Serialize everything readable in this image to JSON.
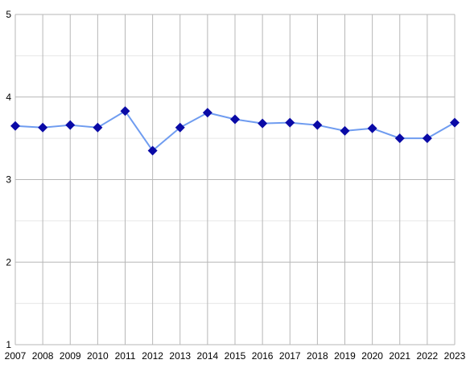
{
  "chart_data": {
    "type": "line",
    "title": "",
    "xlabel": "",
    "ylabel": "",
    "x": [
      "2007",
      "2008",
      "2009",
      "2010",
      "2011",
      "2012",
      "2013",
      "2014",
      "2015",
      "2016",
      "2017",
      "2018",
      "2019",
      "2020",
      "2021",
      "2022",
      "2023"
    ],
    "series": [
      {
        "values": [
          3.65,
          3.63,
          3.66,
          3.63,
          3.83,
          3.35,
          3.63,
          3.81,
          3.73,
          3.68,
          3.69,
          3.66,
          3.59,
          3.62,
          3.5,
          3.5,
          3.69
        ]
      }
    ],
    "ylim": [
      1,
      5
    ],
    "yticks": [
      "1",
      "2",
      "3",
      "4",
      "5"
    ],
    "grid": true,
    "minor_grid": true,
    "legend": "none",
    "colors": {
      "line": "#6f9cf0",
      "marker": "#0a0aa6",
      "grid_major": "#b7b7b7",
      "grid_minor": "#e6e6e6"
    }
  }
}
